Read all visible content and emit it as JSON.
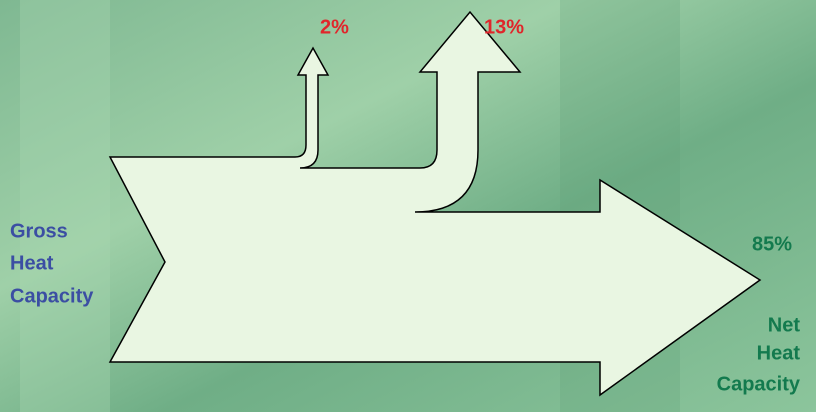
{
  "source": {
    "label_lines": [
      "Gross",
      "Heat",
      "Capacity"
    ]
  },
  "flows": [
    {
      "label": "2%"
    },
    {
      "label": "13%"
    },
    {
      "label": "85%",
      "target_lines": [
        "Net",
        "Heat",
        "Capacity"
      ]
    }
  ]
}
